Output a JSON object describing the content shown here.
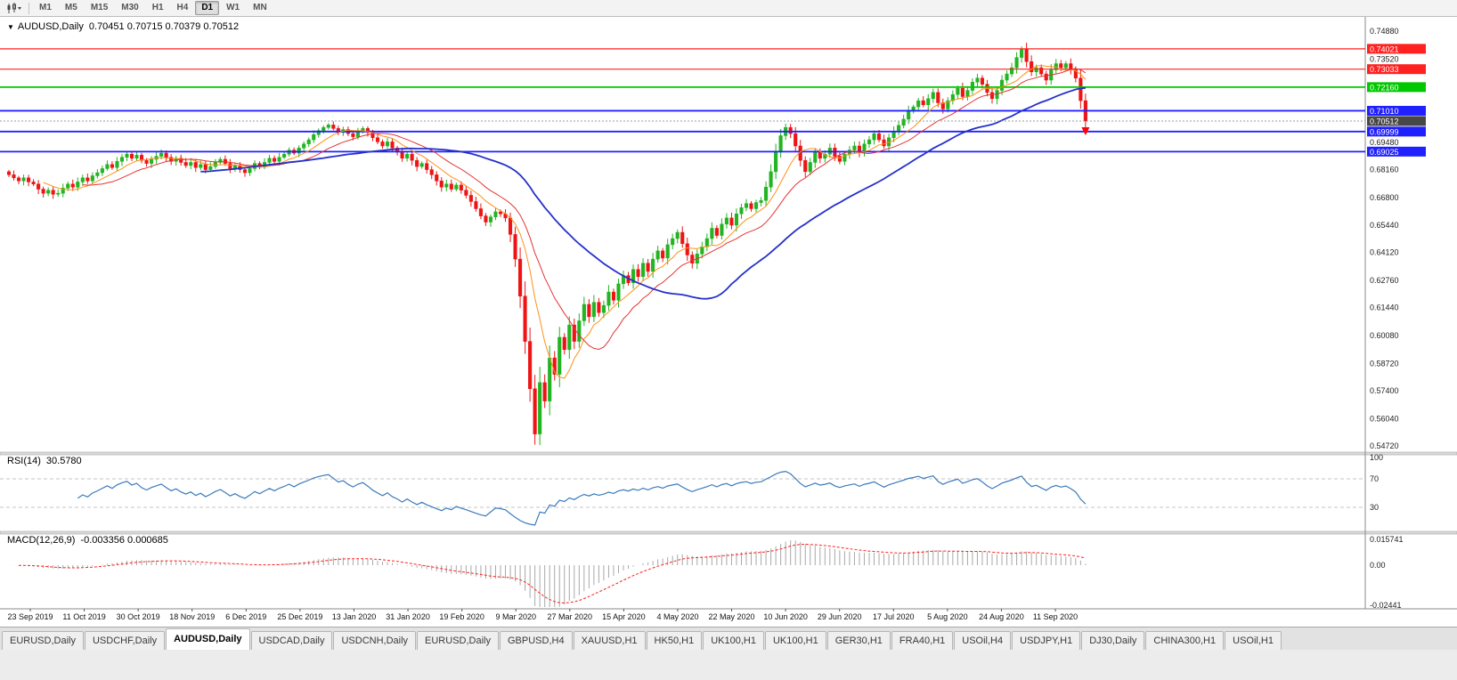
{
  "toolbar": {
    "timeframes": [
      "M1",
      "M5",
      "M15",
      "M30",
      "H1",
      "H4",
      "D1",
      "W1",
      "MN"
    ],
    "active_timeframe": "D1",
    "chart_type_icon": "candlestick-chart-icon"
  },
  "chart": {
    "symbol_period": "AUDUSD,Daily",
    "ohlc": "0.70451 0.70715 0.70379 0.70512",
    "collapse_icon": "▼",
    "current_price": {
      "value": 0.70512,
      "label": "0.70512"
    },
    "levels": [
      {
        "value": 0.74021,
        "label": "0.74021",
        "color": "#ff2020",
        "width": 1.2
      },
      {
        "value": 0.73033,
        "label": "0.73033",
        "color": "#ff2020",
        "width": 1.2
      },
      {
        "value": 0.7216,
        "label": "0.72160",
        "color": "#00c800",
        "width": 1.8
      },
      {
        "value": 0.7101,
        "label": "0.71010",
        "color": "#2020ff",
        "width": 1.8
      },
      {
        "value": 0.69999,
        "label": "0.69999",
        "color": "#2020ff",
        "width": 1.8
      },
      {
        "value": 0.69025,
        "label": "0.69025",
        "color": "#2020ff",
        "width": 1.8
      }
    ],
    "y_ticks": [
      "0.74880",
      "0.73520",
      "0.69480",
      "0.68160",
      "0.66800",
      "0.65440",
      "0.64120",
      "0.62760",
      "0.61440",
      "0.60080",
      "0.58720",
      "0.57400",
      "0.56040",
      "0.54720"
    ]
  },
  "rsi": {
    "label": "RSI(14)",
    "value": "30.5780",
    "axis": [
      {
        "label": "100",
        "value": 100
      },
      {
        "label": "70",
        "value": 70
      },
      {
        "label": "30",
        "value": 30
      }
    ],
    "dashed_levels": [
      70,
      30
    ]
  },
  "macd": {
    "label": "MACD(12,26,9)",
    "values": "-0.003356 0.000685",
    "axis": [
      {
        "label": "0.015741",
        "value": 0.015741
      },
      {
        "label": "0.00",
        "value": 0.0
      },
      {
        "label": "-0.02441",
        "value": -0.024411
      }
    ]
  },
  "chart_data": {
    "type": "candlestick",
    "symbol": "AUDUSD",
    "timeframe": "Daily",
    "title": "AUDUSD,Daily 0.70451 0.70715 0.70379 0.70512",
    "ylim": [
      0.5472,
      0.7488
    ],
    "last_ohlc": {
      "open": 0.70451,
      "high": 0.70715,
      "low": 0.70379,
      "close": 0.70512
    },
    "x_labels": [
      "23 Sep 2019",
      "11 Oct 2019",
      "30 Oct 2019",
      "18 Nov 2019",
      "6 Dec 2019",
      "25 Dec 2019",
      "13 Jan 2020",
      "31 Jan 2020",
      "19 Feb 2020",
      "9 Mar 2020",
      "27 Mar 2020",
      "15 Apr 2020",
      "4 May 2020",
      "22 May 2020",
      "10 Jun 2020",
      "29 Jun 2020",
      "17 Jul 2020",
      "5 Aug 2020",
      "24 Aug 2020",
      "11 Sep 2020"
    ],
    "closes": [
      0.679,
      0.6775,
      0.676,
      0.6775,
      0.6755,
      0.6745,
      0.672,
      0.67,
      0.6715,
      0.6695,
      0.67,
      0.6725,
      0.6745,
      0.673,
      0.6755,
      0.6775,
      0.676,
      0.6785,
      0.68,
      0.682,
      0.684,
      0.6825,
      0.6855,
      0.6875,
      0.689,
      0.687,
      0.6885,
      0.686,
      0.6845,
      0.6865,
      0.688,
      0.6895,
      0.6875,
      0.6855,
      0.687,
      0.685,
      0.6835,
      0.685,
      0.6825,
      0.684,
      0.6815,
      0.683,
      0.685,
      0.6865,
      0.6845,
      0.682,
      0.6835,
      0.6815,
      0.68,
      0.682,
      0.6845,
      0.683,
      0.685,
      0.687,
      0.6855,
      0.6875,
      0.689,
      0.691,
      0.6895,
      0.692,
      0.694,
      0.696,
      0.6985,
      0.7005,
      0.702,
      0.7032,
      0.7015,
      0.6995,
      0.701,
      0.699,
      0.6975,
      0.7,
      0.7015,
      0.6995,
      0.697,
      0.695,
      0.693,
      0.695,
      0.692,
      0.69,
      0.687,
      0.689,
      0.686,
      0.683,
      0.6845,
      0.6815,
      0.679,
      0.676,
      0.673,
      0.6745,
      0.672,
      0.674,
      0.6715,
      0.669,
      0.666,
      0.6625,
      0.659,
      0.656,
      0.6585,
      0.661,
      0.66,
      0.658,
      0.65,
      0.638,
      0.62,
      0.598,
      0.575,
      0.553,
      0.578,
      0.569,
      0.59,
      0.582,
      0.6,
      0.594,
      0.606,
      0.598,
      0.608,
      0.616,
      0.61,
      0.617,
      0.612,
      0.6155,
      0.622,
      0.618,
      0.626,
      0.63,
      0.6265,
      0.633,
      0.6295,
      0.636,
      0.632,
      0.638,
      0.642,
      0.6385,
      0.645,
      0.648,
      0.651,
      0.6455,
      0.64,
      0.636,
      0.6405,
      0.644,
      0.648,
      0.653,
      0.6495,
      0.655,
      0.658,
      0.6545,
      0.66,
      0.663,
      0.665,
      0.6625,
      0.6655,
      0.6665,
      0.673,
      0.6805,
      0.69,
      0.698,
      0.702,
      0.699,
      0.693,
      0.686,
      0.6805,
      0.685,
      0.69,
      0.687,
      0.689,
      0.692,
      0.688,
      0.6855,
      0.689,
      0.691,
      0.693,
      0.69,
      0.694,
      0.696,
      0.699,
      0.696,
      0.693,
      0.697,
      0.7,
      0.703,
      0.706,
      0.71,
      0.712,
      0.715,
      0.713,
      0.716,
      0.719,
      0.714,
      0.711,
      0.715,
      0.718,
      0.721,
      0.717,
      0.72,
      0.724,
      0.726,
      0.723,
      0.719,
      0.716,
      0.72,
      0.725,
      0.728,
      0.731,
      0.736,
      0.74,
      0.734,
      0.729,
      0.731,
      0.728,
      0.725,
      0.73,
      0.733,
      0.731,
      0.733,
      0.73,
      0.726,
      0.715,
      0.70512
    ]
  },
  "tabs": [
    {
      "label": "EURUSD,Daily",
      "active": false
    },
    {
      "label": "USDCHF,Daily",
      "active": false
    },
    {
      "label": "AUDUSD,Daily",
      "active": true
    },
    {
      "label": "USDCAD,Daily",
      "active": false
    },
    {
      "label": "USDCNH,Daily",
      "active": false
    },
    {
      "label": "EURUSD,Daily",
      "active": false
    },
    {
      "label": "GBPUSD,H4",
      "active": false
    },
    {
      "label": "XAUUSD,H1",
      "active": false
    },
    {
      "label": "HK50,H1",
      "active": false
    },
    {
      "label": "UK100,H1",
      "active": false
    },
    {
      "label": "UK100,H1",
      "active": false
    },
    {
      "label": "GER30,H1",
      "active": false
    },
    {
      "label": "FRA40,H1",
      "active": false
    },
    {
      "label": "USOil,H4",
      "active": false
    },
    {
      "label": "USDJPY,H1",
      "active": false
    },
    {
      "label": "DJ30,Daily",
      "active": false
    },
    {
      "label": "CHINA300,H1",
      "active": false
    },
    {
      "label": "USOil,H1",
      "active": false
    }
  ],
  "colors": {
    "candle_up": "#22b422",
    "candle_down": "#ee1414",
    "ma_fast_orange": "#ff9018",
    "ma_mid_red": "#e43434",
    "ma_slow_blue": "#2431c8",
    "level_red": "#ff2020",
    "level_green": "#00c800",
    "level_blue": "#2020ff",
    "current_price_bg": "#474747",
    "rsi_line": "#3a7abd",
    "macd_hist": "#a8a8a8",
    "macd_signal": "#ff2020",
    "sell_arrow": "#ff0000"
  }
}
